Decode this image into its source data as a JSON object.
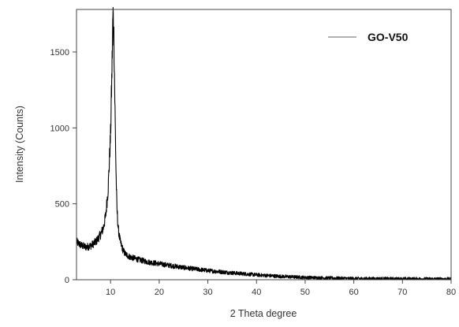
{
  "chart_data": {
    "type": "line",
    "xlabel": "2 Theta degree",
    "ylabel": "Intensity (Counts)",
    "xlim": [
      3,
      80
    ],
    "ylim": [
      0,
      1780
    ],
    "xticks": [
      10,
      20,
      30,
      40,
      50,
      60,
      70,
      80
    ],
    "yticks": [
      0,
      500,
      1000,
      1500
    ],
    "grid": false,
    "legend_position": "top-right",
    "series": [
      {
        "name": "GO-V50",
        "color": "#000000",
        "legend_color": "#999999",
        "x": [
          3,
          4,
          5,
          6,
          7,
          8,
          8.5,
          9,
          9.5,
          10,
          10.3,
          10.5,
          10.7,
          10.9,
          11.1,
          11.3,
          11.6,
          12,
          12.5,
          13,
          14,
          15,
          16,
          18,
          20,
          22,
          25,
          28,
          30,
          35,
          40,
          45,
          50,
          55,
          60,
          70,
          80
        ],
        "values": [
          250,
          225,
          215,
          225,
          250,
          300,
          340,
          420,
          600,
          950,
          1400,
          1760,
          1580,
          1150,
          750,
          470,
          330,
          250,
          200,
          170,
          150,
          140,
          130,
          115,
          105,
          95,
          80,
          68,
          60,
          45,
          32,
          22,
          15,
          11,
          8,
          6,
          5
        ]
      }
    ]
  }
}
